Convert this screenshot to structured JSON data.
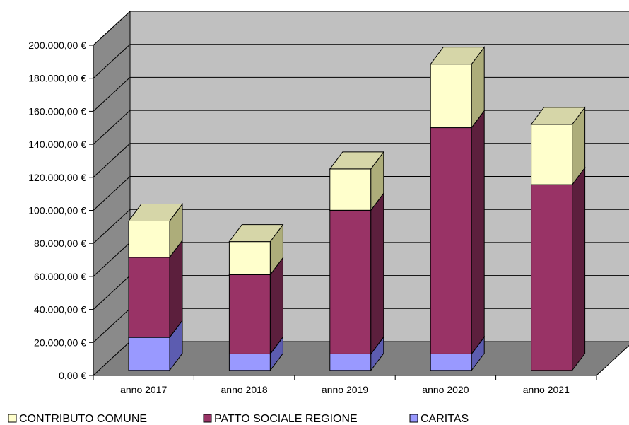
{
  "chart_data": {
    "type": "bar",
    "stacked": true,
    "three_d": true,
    "categories": [
      "anno 2017",
      "anno 2018",
      "anno 2019",
      "anno 2020",
      "anno 2021"
    ],
    "series": [
      {
        "name": "CARITAS",
        "values": [
          20000,
          10000,
          10000,
          10000,
          0
        ],
        "color": "#9999ff",
        "side": "#5c5cb0",
        "top": "#b8b8ff"
      },
      {
        "name": "PATTO SOCIALE REGIONE",
        "values": [
          48500,
          48000,
          87000,
          137000,
          112500
        ],
        "color": "#993366",
        "side": "#5c1f3d",
        "top": "#b3557f"
      },
      {
        "name": "CONTRIBUTO COMUNE",
        "values": [
          22000,
          20000,
          25000,
          38500,
          36500
        ],
        "color": "#ffffcc",
        "side": "#adad7a",
        "top": "#d6d6a8"
      }
    ],
    "y_tick_labels": [
      "0,00 €",
      "20.000,00 €",
      "40.000,00 €",
      "60.000,00 €",
      "80.000,00 €",
      "100.000,00 €",
      "120.000,00 €",
      "140.000,00 €",
      "160.000,00 €",
      "180.000,00 €",
      "200.000,00 €"
    ],
    "ylim": [
      0,
      200000
    ],
    "grid": true,
    "legend_position": "bottom-left",
    "legend_order": [
      "CONTRIBUTO COMUNE",
      "PATTO SOCIALE REGIONE",
      "CARITAS"
    ],
    "colors": {
      "wall": "#c0c0c0",
      "side_wall": "#8a8a8a",
      "floor": "#808080",
      "gridline": "#000000"
    }
  }
}
